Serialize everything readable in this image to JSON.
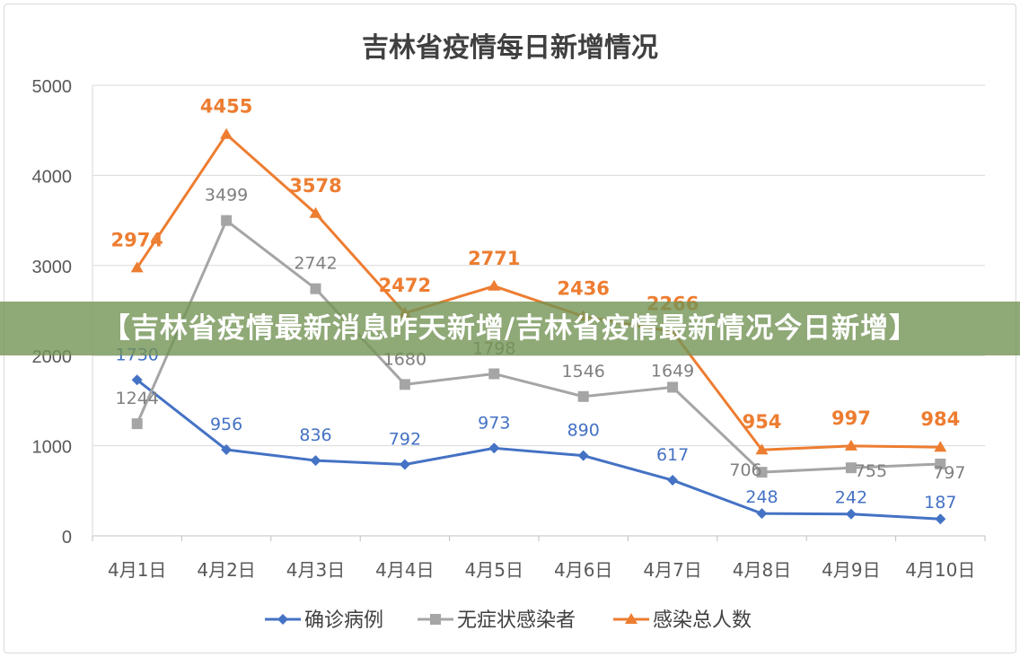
{
  "chart_data": {
    "type": "line",
    "title": "吉林省疫情每日新增情况",
    "categories": [
      "4月1日",
      "4月2日",
      "4月3日",
      "4月4日",
      "4月5日",
      "4月6日",
      "4月7日",
      "4月8日",
      "4月9日",
      "4月10日"
    ],
    "ylim": [
      0,
      5000
    ],
    "yticks": [
      "0",
      "1000",
      "2000",
      "3000",
      "4000",
      "5000"
    ],
    "grid": true,
    "legend": "bottom",
    "series": [
      {
        "name": "确诊病例",
        "color": "#4472c4",
        "marker": "diamond",
        "values": [
          1730,
          956,
          836,
          792,
          973,
          890,
          617,
          248,
          242,
          187
        ]
      },
      {
        "name": "无症状感染者",
        "color": "#a5a5a5",
        "marker": "square",
        "values": [
          1244,
          3499,
          2742,
          1680,
          1798,
          1546,
          1649,
          706,
          755,
          797
        ]
      },
      {
        "name": "感染总人数",
        "color": "#ed7d31",
        "marker": "triangle",
        "values": [
          2974,
          4455,
          3578,
          2472,
          2771,
          2436,
          2266,
          954,
          997,
          984
        ]
      }
    ]
  },
  "banner": {
    "text": "【吉林省疫情最新消息昨天新增/吉林省疫情最新情况今日新增】"
  }
}
